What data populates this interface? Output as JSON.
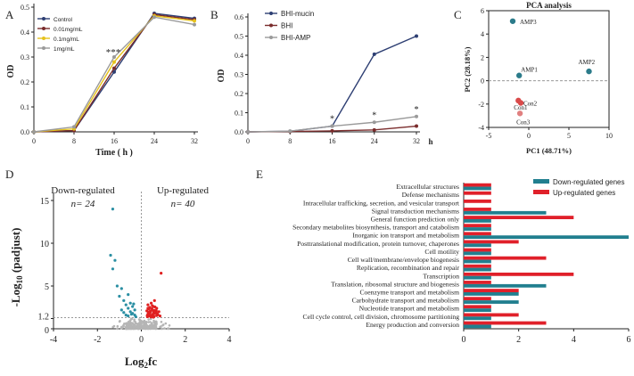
{
  "chart_data": [
    {
      "panel": "A",
      "type": "line",
      "xlabel": "Time ( h )",
      "ylabel": "OD",
      "x": [
        0,
        8,
        16,
        24,
        32
      ],
      "xticks": [
        "0",
        "8",
        "16",
        "24",
        "32"
      ],
      "yticks": [
        "0.0",
        "0.1",
        "0.2",
        "0.3",
        "0.4",
        "0.5"
      ],
      "xlim": [
        0,
        32
      ],
      "ylim": [
        0,
        0.5
      ],
      "annotation": "***",
      "annotation_x": 16,
      "series": [
        {
          "name": "Control",
          "color": "#2e3f73",
          "values": [
            0.0,
            0.005,
            0.24,
            0.475,
            0.455
          ]
        },
        {
          "name": "0.01mg/mL",
          "color": "#7a2c2c",
          "values": [
            0.0,
            0.005,
            0.255,
            0.47,
            0.45
          ]
        },
        {
          "name": "0.1mg/mL",
          "color": "#e6c21c",
          "values": [
            0.0,
            0.012,
            0.28,
            0.465,
            0.445
          ]
        },
        {
          "name": "1mg/mL",
          "color": "#9a9a9a",
          "values": [
            0.0,
            0.02,
            0.3,
            0.46,
            0.43
          ]
        }
      ]
    },
    {
      "panel": "B",
      "type": "line",
      "xlabel": "h",
      "ylabel": "OD",
      "x": [
        0,
        8,
        16,
        24,
        32
      ],
      "xticks": [
        "0",
        "8",
        "16",
        "24",
        "32"
      ],
      "yticks": [
        "0.0",
        "0.1",
        "0.2",
        "0.3",
        "0.4",
        "0.5",
        "0.6"
      ],
      "xlim": [
        0,
        32
      ],
      "ylim": [
        0,
        0.6
      ],
      "annotation": "*",
      "annotation_x": [
        16,
        24,
        32
      ],
      "series": [
        {
          "name": "BHI-mucin",
          "color": "#2e3f73",
          "values": [
            0.0,
            0.003,
            0.03,
            0.405,
            0.5
          ]
        },
        {
          "name": "BHI",
          "color": "#7a2c2c",
          "values": [
            0.0,
            0.002,
            0.005,
            0.01,
            0.03
          ]
        },
        {
          "name": "BHI-AMP",
          "color": "#9a9a9a",
          "values": [
            0.0,
            0.004,
            0.03,
            0.05,
            0.08
          ]
        }
      ]
    },
    {
      "panel": "C",
      "type": "scatter",
      "title": "PCA analysis",
      "xlabel": "PC1 (48.71%)",
      "ylabel": "PC2 (28.18%)",
      "xticks": [
        "-5",
        "0",
        "5",
        "10"
      ],
      "yticks": [
        "-4",
        "-2",
        "0",
        "2",
        "4",
        "6"
      ],
      "xlim": [
        -5,
        10
      ],
      "ylim": [
        -4,
        6
      ],
      "points": [
        {
          "label": "AMP3",
          "x": -2.0,
          "y": 5.1,
          "color": "#2b7b8a"
        },
        {
          "label": "AMP1",
          "x": -1.2,
          "y": 0.45,
          "color": "#2b7b8a"
        },
        {
          "label": "AMP2",
          "x": 7.5,
          "y": 0.8,
          "color": "#2b7b8a"
        },
        {
          "label": "Con1",
          "x": -1.3,
          "y": -1.7,
          "color": "#d94a4a"
        },
        {
          "label": "Con2",
          "x": -1.0,
          "y": -1.9,
          "color": "#d94a4a"
        },
        {
          "label": "Con3",
          "x": -1.1,
          "y": -2.8,
          "color": "#e08080"
        }
      ]
    },
    {
      "panel": "D",
      "type": "scatter",
      "xlabel": "Log2fc",
      "ylabel": "-Log10 (padjust)",
      "xticks": [
        "-4",
        "-2",
        "0",
        "2",
        "4"
      ],
      "yticks": [
        "0",
        "1.2",
        "5",
        "10",
        "15"
      ],
      "xlim": [
        -4,
        4
      ],
      "ylim": [
        0,
        15
      ],
      "threshold_y": 1.3,
      "left_title": "Down-regulated",
      "left_count": "n= 24",
      "right_title": "Up-regulated",
      "right_count": "n= 40",
      "down_color": "#2b8fa3",
      "up_color": "#e02020",
      "ns_color": "#b5b5b5"
    },
    {
      "panel": "E",
      "type": "bar",
      "xticks": [
        "0",
        "2",
        "4",
        "6"
      ],
      "xlim": [
        0,
        6
      ],
      "categories": [
        "Extracellular structures",
        "Defense mechanisms",
        "Intracellular trafficking, secretion, and vesicular transport",
        "Signal transduction mechanisms",
        "General function prediction only",
        "Secondary metabolites biosynthesis, transport and catabolism",
        "Inorganic ion transport and metabolism",
        "Posttranslational modification, protein turnover, chaperones",
        "Cell motility",
        "Cell wall/membrane/envelope biogenesis",
        "Replication, recombination and repair",
        "Transcription",
        "Translation, ribosomal structure and biogenesis",
        "Coenzyme transport and metabolism",
        "Carbohydrate transport and metabolism",
        "Nucleotide transport and metabolism",
        "Cell cycle control, cell division, chromosome partitioning",
        "Energy production and conversion"
      ],
      "series": [
        {
          "name": "Down-regulated genes",
          "color": "#217f8f",
          "values": [
            1,
            0,
            0,
            3,
            1,
            1,
            6,
            1,
            1,
            1,
            1,
            1,
            3,
            2,
            2,
            1,
            1,
            1
          ]
        },
        {
          "name": "Up-regulated genes",
          "color": "#e0202a",
          "values": [
            1,
            1,
            1,
            1,
            4,
            1,
            1,
            2,
            1,
            3,
            1,
            4,
            1,
            2,
            1,
            1,
            2,
            3
          ]
        }
      ],
      "legend_position": "top-right"
    }
  ],
  "labels": {
    "panel_a": "A",
    "panel_b": "B",
    "panel_c": "C",
    "panel_d": "D",
    "panel_e": "E"
  }
}
